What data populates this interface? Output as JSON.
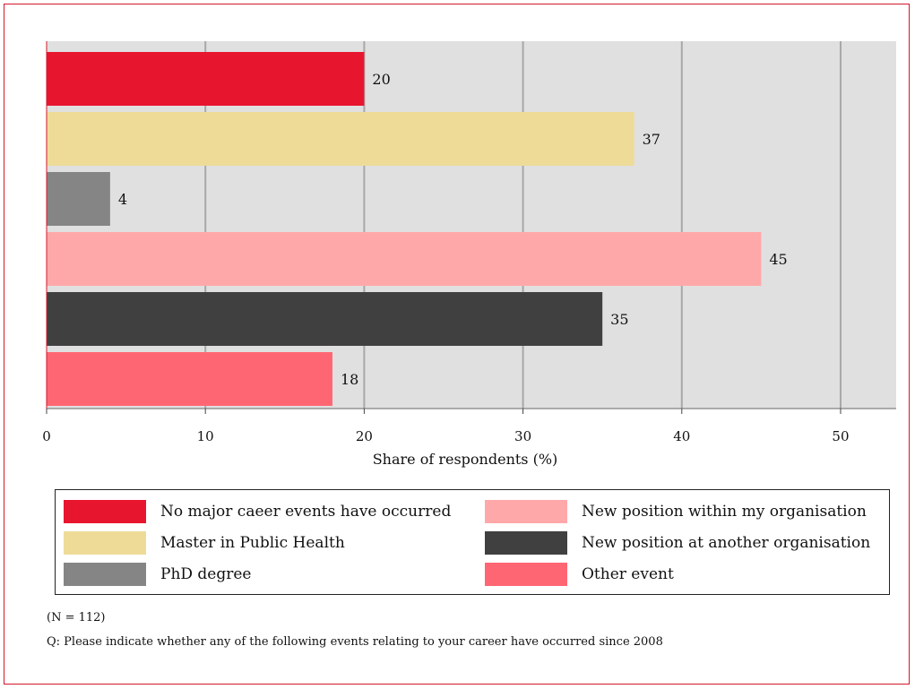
{
  "chart_data": {
    "type": "bar",
    "orientation": "horizontal",
    "categories": [
      "No major caeer events have occurred",
      "Master in Public Health",
      "PhD degree",
      "New position within my organisation",
      "New position at another organisation",
      "Other event"
    ],
    "values": [
      20,
      37,
      4,
      45,
      35,
      18
    ],
    "data_labels": [
      "20",
      "37",
      "4",
      "45",
      "35",
      "18"
    ],
    "colors": [
      "#e8152f",
      "#eedb98",
      "#858585",
      "#ffa8aa",
      "#404040",
      "#ff6673"
    ],
    "xlabel": "Share of respondents (%)",
    "xlim": [
      0,
      53.5
    ],
    "xticks": [
      0,
      10,
      20,
      30,
      40,
      50
    ],
    "xtick_labels": [
      "0",
      "10",
      "20",
      "30",
      "40",
      "50"
    ],
    "grid": "vertical",
    "legend": {
      "placement": "bottom",
      "columns": [
        [
          "No major caeer events have occurred",
          "Master in Public Health",
          "PhD degree"
        ],
        [
          "New position within my organisation",
          "New position at another organisation",
          "Other event"
        ]
      ]
    }
  },
  "notes": {
    "n": "(N = 112)",
    "question": "Q: Please indicate whether any of the following events relating to your career have occurred since 2008"
  }
}
